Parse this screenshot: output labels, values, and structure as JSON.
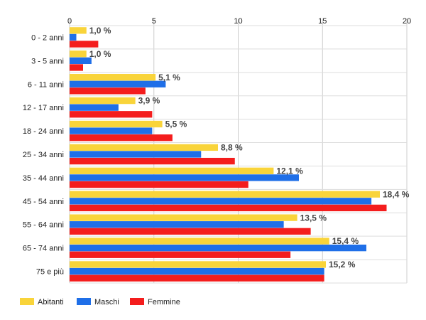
{
  "chart_data": {
    "type": "bar",
    "orientation": "horizontal",
    "categories": [
      "0 - 2 anni",
      "3 - 5 anni",
      "6 - 11 anni",
      "12 - 17 anni",
      "18 - 24 anni",
      "25 - 34 anni",
      "35 - 44 anni",
      "45 - 54 anni",
      "55 - 64 anni",
      "65 - 74 anni",
      "75 e più"
    ],
    "series": [
      {
        "name": "Abitanti",
        "color": "#f9d43a",
        "values": [
          1.0,
          1.0,
          5.1,
          3.9,
          5.5,
          8.8,
          12.1,
          18.4,
          13.5,
          15.4,
          15.2
        ]
      },
      {
        "name": "Maschi",
        "color": "#1f6fe8",
        "values": [
          0.4,
          1.3,
          5.7,
          2.9,
          4.9,
          7.8,
          13.6,
          17.9,
          12.7,
          17.6,
          15.1
        ]
      },
      {
        "name": "Femmine",
        "color": "#f41d1d",
        "values": [
          1.7,
          0.8,
          4.5,
          4.9,
          6.1,
          9.8,
          10.6,
          18.8,
          14.3,
          13.1,
          15.1
        ]
      }
    ],
    "data_labels": [
      "1,0 %",
      "1,0 %",
      "5,1 %",
      "3,9 %",
      "5,5 %",
      "8,8 %",
      "12,1 %",
      "18,4 %",
      "13,5 %",
      "15,4 %",
      "15,2 %"
    ],
    "x_ticks": [
      "0",
      "5",
      "10",
      "15",
      "20"
    ],
    "xlim": [
      0,
      20
    ],
    "axis_position": "top",
    "grid": true,
    "legend_position": "bottom-left"
  }
}
